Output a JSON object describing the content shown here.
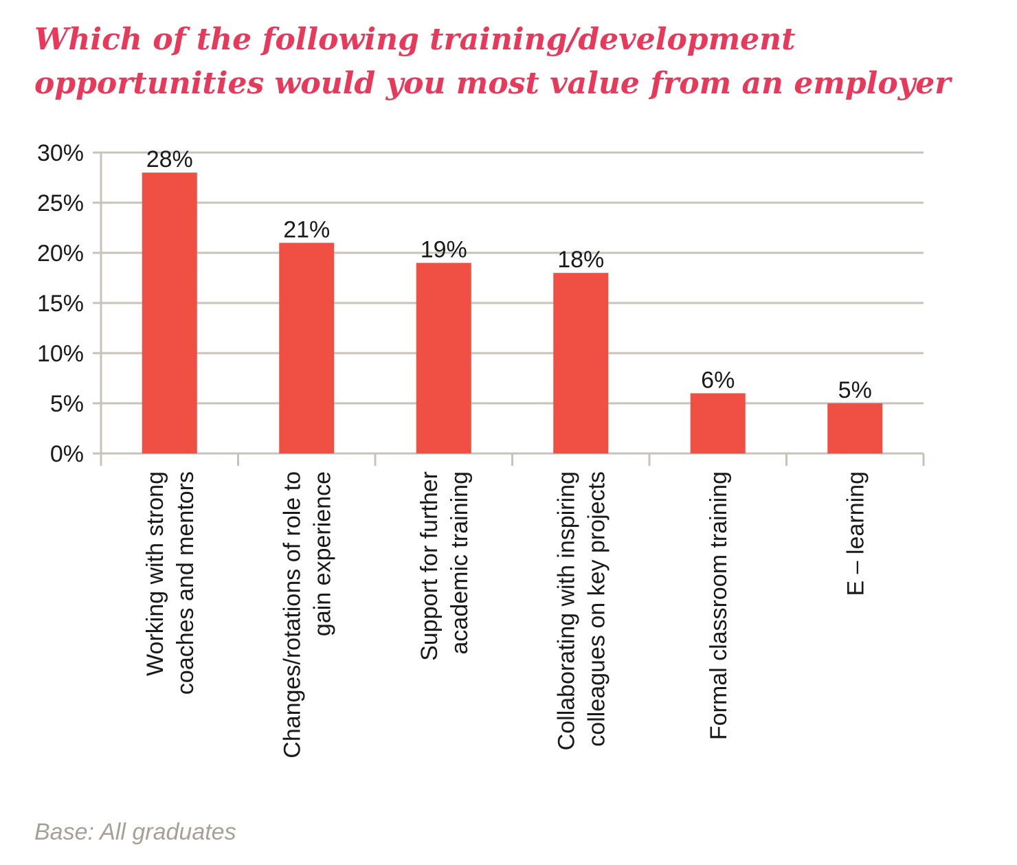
{
  "chart_data": {
    "type": "bar",
    "title_lines": [
      "Which of the following training/development",
      "opportunities would you most value from an employer"
    ],
    "categories": [
      [
        "Working with strong",
        "coaches and mentors"
      ],
      [
        "Changes/rotations of role to",
        "gain experience"
      ],
      [
        "Support for further",
        "academic training"
      ],
      [
        "Collaborating with inspiring",
        "colleagues on key projects"
      ],
      [
        "Formal classroom training"
      ],
      [
        "E – learning"
      ]
    ],
    "values": [
      28,
      21,
      19,
      18,
      6,
      5
    ],
    "value_labels": [
      "28%",
      "21%",
      "19%",
      "18%",
      "6%",
      "5%"
    ],
    "ylim": [
      0,
      30
    ],
    "yticks": [
      0,
      5,
      10,
      15,
      20,
      25,
      30
    ],
    "ytick_labels": [
      "0%",
      "5%",
      "10%",
      "15%",
      "20%",
      "25%",
      "30%"
    ],
    "grid": true,
    "colors": {
      "bar": "#f04f43",
      "grid": "#c9c2ba",
      "title": "#e8395a",
      "note": "#a8a097"
    }
  },
  "footnote": "Base: All graduates"
}
